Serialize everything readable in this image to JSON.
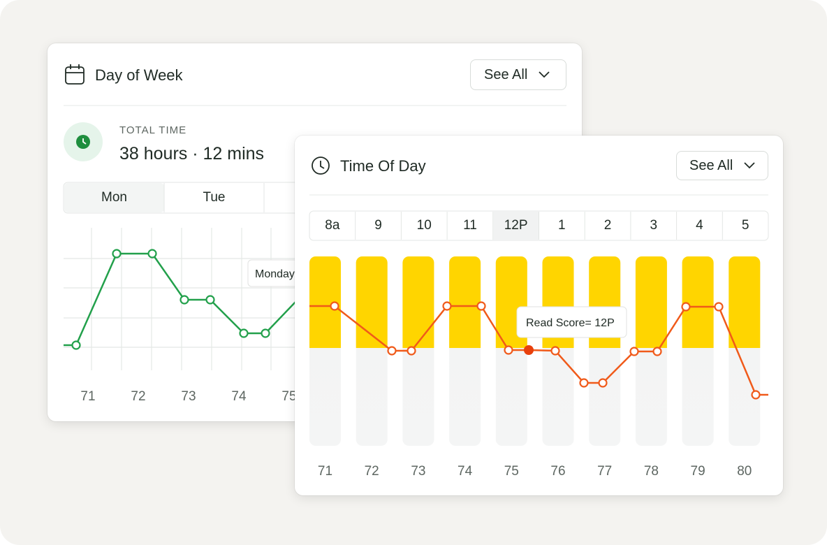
{
  "day_card": {
    "title": "Day of Week",
    "button": "See All",
    "total_label": "TOTAL TIME",
    "total_value": "38 hours · 12 mins",
    "tabs": [
      "Mon",
      "Tue"
    ],
    "tooltip": "Monday",
    "x_labels": [
      "71",
      "72",
      "73",
      "74",
      "75"
    ]
  },
  "time_card": {
    "title": "Time Of Day",
    "button": "See All",
    "hours": [
      "8a",
      "9",
      "10",
      "11",
      "12P",
      "1",
      "2",
      "3",
      "4",
      "5"
    ],
    "tooltip": "Read Score= 12P",
    "x_labels": [
      "71",
      "72",
      "73",
      "74",
      "75",
      "76",
      "77",
      "78",
      "79",
      "80"
    ]
  }
}
